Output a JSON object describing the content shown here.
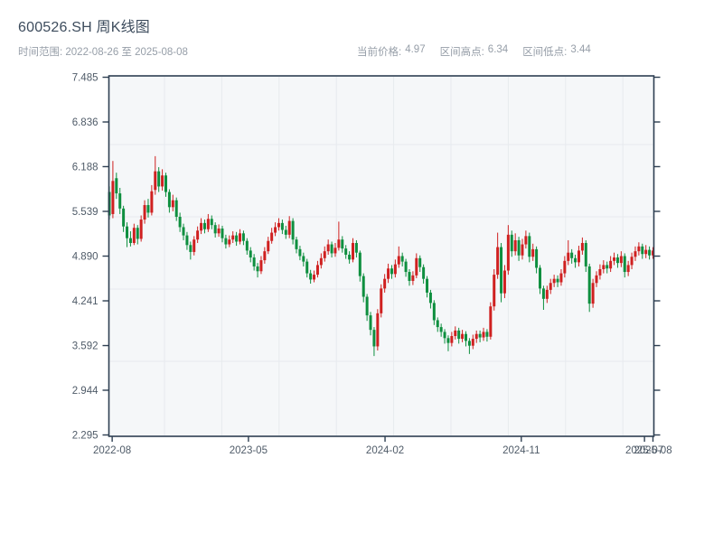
{
  "header": {
    "title": "600526.SH 周K线图",
    "time_range": "时间范围: 2022-08-26 至 2025-08-08",
    "stats": [
      {
        "label": "当前价格:",
        "value": "4.97"
      },
      {
        "label": "区间高点:",
        "value": "6.34"
      },
      {
        "label": "区间低点:",
        "value": "3.44"
      }
    ]
  },
  "chart_data": {
    "type": "candlestick",
    "symbol": "600526.SH",
    "interval": "weekly",
    "title": "600526.SH 周K线图",
    "ylim": [
      2.295,
      7.485
    ],
    "current_price": 4.97,
    "range_high": 6.34,
    "range_low": 3.44,
    "up_color": "#cf2020",
    "down_color": "#0e8f3f",
    "plot_bg": "#f5f7f9",
    "grid_color": "#e7eaee",
    "frame_color": "#2e3f52",
    "tick_label_color": "#4f5b68",
    "y_tick_labels": [
      "7.485",
      "6.836",
      "6.188",
      "5.539",
      "4.890",
      "4.241",
      "3.592",
      "2.944",
      "2.295"
    ],
    "x_ticks": [
      {
        "label": "2022-08",
        "week": 0.8
      },
      {
        "label": "2023-05",
        "week": 39.4
      },
      {
        "label": "2024-02",
        "week": 78.1
      },
      {
        "label": "2024-11",
        "week": 116.7
      },
      {
        "label": "2025-07",
        "week": 151.6
      },
      {
        "label": "2025-08",
        "week": 154
      }
    ],
    "candles": [
      [
        "2022-08-26",
        5.82,
        5.9,
        5.42,
        5.48
      ],
      [
        "2022-09-02",
        5.5,
        6.27,
        5.44,
        5.98
      ],
      [
        "2022-09-09",
        6.02,
        6.1,
        5.72,
        5.8
      ],
      [
        "2022-09-16",
        5.8,
        5.88,
        5.5,
        5.58
      ],
      [
        "2022-09-23",
        5.58,
        5.62,
        5.24,
        5.32
      ],
      [
        "2022-09-30",
        5.32,
        5.38,
        5.02,
        5.15
      ],
      [
        "2022-10-07",
        5.15,
        5.25,
        5.03,
        5.08
      ],
      [
        "2022-10-14",
        5.08,
        5.36,
        5.05,
        5.3
      ],
      [
        "2022-10-21",
        5.3,
        5.34,
        5.06,
        5.14
      ],
      [
        "2022-10-28",
        5.14,
        5.48,
        5.1,
        5.42
      ],
      [
        "2022-11-04",
        5.42,
        5.7,
        5.36,
        5.63
      ],
      [
        "2022-11-11",
        5.63,
        5.72,
        5.45,
        5.52
      ],
      [
        "2022-11-18",
        5.52,
        5.92,
        5.48,
        5.83
      ],
      [
        "2022-11-25",
        5.85,
        6.34,
        5.78,
        6.12
      ],
      [
        "2022-12-02",
        6.12,
        6.18,
        5.82,
        5.9
      ],
      [
        "2022-12-09",
        5.9,
        6.15,
        5.84,
        6.06
      ],
      [
        "2022-12-16",
        6.06,
        6.1,
        5.75,
        5.82
      ],
      [
        "2022-12-23",
        5.82,
        5.86,
        5.52,
        5.6
      ],
      [
        "2022-12-30",
        5.6,
        5.78,
        5.54,
        5.7
      ],
      [
        "2023-01-06",
        5.7,
        5.74,
        5.4,
        5.46
      ],
      [
        "2023-01-13",
        5.46,
        5.52,
        5.24,
        5.31
      ],
      [
        "2023-01-20",
        5.31,
        5.36,
        5.12,
        5.19
      ],
      [
        "2023-01-27",
        5.19,
        5.24,
        4.98,
        5.05
      ],
      [
        "2023-02-03",
        5.05,
        5.1,
        4.84,
        4.95
      ],
      [
        "2023-02-10",
        4.95,
        5.18,
        4.9,
        5.13
      ],
      [
        "2023-02-17",
        5.13,
        5.32,
        5.08,
        5.26
      ],
      [
        "2023-02-24",
        5.26,
        5.44,
        5.21,
        5.37
      ],
      [
        "2023-03-03",
        5.37,
        5.42,
        5.22,
        5.28
      ],
      [
        "2023-03-10",
        5.28,
        5.5,
        5.24,
        5.43
      ],
      [
        "2023-03-17",
        5.43,
        5.48,
        5.28,
        5.34
      ],
      [
        "2023-03-24",
        5.34,
        5.38,
        5.16,
        5.22
      ],
      [
        "2023-03-31",
        5.22,
        5.35,
        5.17,
        5.29
      ],
      [
        "2023-04-07",
        5.29,
        5.33,
        5.09,
        5.15
      ],
      [
        "2023-04-14",
        5.15,
        5.2,
        5.0,
        5.06
      ],
      [
        "2023-04-21",
        5.06,
        5.19,
        5.02,
        5.13
      ],
      [
        "2023-04-28",
        5.13,
        5.25,
        5.08,
        5.19
      ],
      [
        "2023-05-05",
        5.19,
        5.24,
        5.04,
        5.1
      ],
      [
        "2023-05-12",
        5.1,
        5.28,
        5.06,
        5.22
      ],
      [
        "2023-05-19",
        5.22,
        5.26,
        5.05,
        5.11
      ],
      [
        "2023-05-26",
        5.11,
        5.15,
        4.91,
        4.97
      ],
      [
        "2023-06-02",
        4.97,
        5.02,
        4.8,
        4.87
      ],
      [
        "2023-06-09",
        4.87,
        4.92,
        4.68,
        4.74
      ],
      [
        "2023-06-16",
        4.74,
        4.79,
        4.58,
        4.67
      ],
      [
        "2023-06-23",
        4.67,
        4.89,
        4.63,
        4.83
      ],
      [
        "2023-06-30",
        4.83,
        5.02,
        4.78,
        4.96
      ],
      [
        "2023-07-07",
        4.96,
        5.17,
        4.92,
        5.11
      ],
      [
        "2023-07-14",
        5.11,
        5.3,
        5.07,
        5.23
      ],
      [
        "2023-07-21",
        5.23,
        5.38,
        5.18,
        5.31
      ],
      [
        "2023-07-28",
        5.31,
        5.44,
        5.26,
        5.37
      ],
      [
        "2023-08-04",
        5.37,
        5.42,
        5.21,
        5.27
      ],
      [
        "2023-08-11",
        5.27,
        5.33,
        5.14,
        5.2
      ],
      [
        "2023-08-18",
        5.2,
        5.47,
        5.15,
        5.4
      ],
      [
        "2023-08-25",
        5.4,
        5.44,
        5.06,
        5.13
      ],
      [
        "2023-09-01",
        5.13,
        5.17,
        4.93,
        4.99
      ],
      [
        "2023-09-08",
        4.99,
        5.04,
        4.83,
        4.89
      ],
      [
        "2023-09-15",
        4.89,
        4.94,
        4.74,
        4.81
      ],
      [
        "2023-09-22",
        4.81,
        4.85,
        4.58,
        4.64
      ],
      [
        "2023-09-29",
        4.64,
        4.69,
        4.49,
        4.55
      ],
      [
        "2023-10-06",
        4.55,
        4.68,
        4.51,
        4.62
      ],
      [
        "2023-10-13",
        4.62,
        4.82,
        4.58,
        4.76
      ],
      [
        "2023-10-20",
        4.76,
        4.93,
        4.71,
        4.86
      ],
      [
        "2023-10-27",
        4.86,
        5.03,
        4.81,
        4.96
      ],
      [
        "2023-11-03",
        4.96,
        5.13,
        4.91,
        5.06
      ],
      [
        "2023-11-10",
        5.06,
        5.1,
        4.87,
        4.93
      ],
      [
        "2023-11-17",
        4.93,
        5.08,
        4.88,
        5.01
      ],
      [
        "2023-11-24",
        5.01,
        5.39,
        4.97,
        5.13
      ],
      [
        "2023-12-01",
        5.13,
        5.18,
        4.94,
        5.0
      ],
      [
        "2023-12-08",
        5.0,
        5.05,
        4.85,
        4.91
      ],
      [
        "2023-12-15",
        4.91,
        4.96,
        4.78,
        4.84
      ],
      [
        "2023-12-22",
        4.84,
        5.15,
        4.8,
        5.08
      ],
      [
        "2023-12-29",
        5.08,
        5.12,
        4.87,
        4.94
      ],
      [
        "2024-01-05",
        4.94,
        4.97,
        4.52,
        4.6
      ],
      [
        "2024-01-12",
        4.6,
        4.64,
        4.22,
        4.3
      ],
      [
        "2024-01-19",
        4.3,
        4.34,
        3.95,
        4.03
      ],
      [
        "2024-01-26",
        4.03,
        4.08,
        3.74,
        3.82
      ],
      [
        "2024-02-02",
        3.82,
        3.86,
        3.44,
        3.58
      ],
      [
        "2024-02-09",
        3.58,
        4.12,
        3.52,
        4.06
      ],
      [
        "2024-02-16",
        4.06,
        4.48,
        4.0,
        4.42
      ],
      [
        "2024-02-23",
        4.42,
        4.63,
        4.36,
        4.56
      ],
      [
        "2024-03-01",
        4.56,
        4.78,
        4.5,
        4.71
      ],
      [
        "2024-03-08",
        4.71,
        4.76,
        4.56,
        4.63
      ],
      [
        "2024-03-15",
        4.63,
        4.84,
        4.58,
        4.77
      ],
      [
        "2024-03-22",
        4.77,
        5.03,
        4.72,
        4.89
      ],
      [
        "2024-03-29",
        4.89,
        4.94,
        4.74,
        4.81
      ],
      [
        "2024-04-05",
        4.81,
        4.85,
        4.59,
        4.66
      ],
      [
        "2024-04-12",
        4.66,
        4.7,
        4.46,
        4.53
      ],
      [
        "2024-04-19",
        4.53,
        4.67,
        4.47,
        4.61
      ],
      [
        "2024-04-26",
        4.61,
        4.93,
        4.57,
        4.86
      ],
      [
        "2024-05-03",
        4.86,
        4.9,
        4.66,
        4.73
      ],
      [
        "2024-05-10",
        4.73,
        4.77,
        4.49,
        4.56
      ],
      [
        "2024-05-17",
        4.56,
        4.6,
        4.29,
        4.36
      ],
      [
        "2024-05-24",
        4.36,
        4.4,
        4.13,
        4.21
      ],
      [
        "2024-05-31",
        4.21,
        4.25,
        3.89,
        3.96
      ],
      [
        "2024-06-07",
        3.96,
        4.0,
        3.79,
        3.86
      ],
      [
        "2024-06-14",
        3.86,
        3.91,
        3.72,
        3.79
      ],
      [
        "2024-06-21",
        3.79,
        3.83,
        3.62,
        3.7
      ],
      [
        "2024-06-28",
        3.7,
        3.74,
        3.51,
        3.63
      ],
      [
        "2024-07-05",
        3.63,
        3.79,
        3.58,
        3.73
      ],
      [
        "2024-07-12",
        3.73,
        3.87,
        3.68,
        3.81
      ],
      [
        "2024-07-19",
        3.81,
        3.85,
        3.62,
        3.69
      ],
      [
        "2024-07-26",
        3.69,
        3.82,
        3.64,
        3.76
      ],
      [
        "2024-08-02",
        3.76,
        3.8,
        3.58,
        3.66
      ],
      [
        "2024-08-09",
        3.66,
        3.7,
        3.47,
        3.59
      ],
      [
        "2024-08-16",
        3.59,
        3.75,
        3.54,
        3.69
      ],
      [
        "2024-08-23",
        3.69,
        3.81,
        3.63,
        3.76
      ],
      [
        "2024-08-30",
        3.76,
        3.81,
        3.64,
        3.71
      ],
      [
        "2024-09-06",
        3.71,
        3.85,
        3.66,
        3.79
      ],
      [
        "2024-09-13",
        3.79,
        3.83,
        3.65,
        3.72
      ],
      [
        "2024-09-20",
        3.72,
        4.22,
        3.68,
        4.16
      ],
      [
        "2024-09-27",
        4.16,
        4.7,
        4.1,
        4.62
      ],
      [
        "2024-10-04",
        4.62,
        5.23,
        4.56,
        5.02
      ],
      [
        "2024-10-11",
        5.02,
        5.08,
        4.22,
        4.35
      ],
      [
        "2024-10-18",
        4.35,
        4.76,
        4.28,
        4.68
      ],
      [
        "2024-10-25",
        4.68,
        5.34,
        4.62,
        5.2
      ],
      [
        "2024-11-01",
        5.2,
        5.26,
        4.88,
        4.96
      ],
      [
        "2024-11-08",
        4.96,
        5.22,
        4.9,
        5.12
      ],
      [
        "2024-11-15",
        5.12,
        5.17,
        4.82,
        4.9
      ],
      [
        "2024-11-22",
        4.9,
        5.14,
        4.84,
        5.06
      ],
      [
        "2024-11-29",
        5.06,
        5.26,
        5.0,
        5.18
      ],
      [
        "2024-12-06",
        5.18,
        5.23,
        4.8,
        4.88
      ],
      [
        "2024-12-13",
        4.88,
        5.07,
        4.82,
        4.99
      ],
      [
        "2024-12-20",
        4.99,
        5.03,
        4.64,
        4.72
      ],
      [
        "2024-12-27",
        4.72,
        4.76,
        4.34,
        4.42
      ],
      [
        "2025-01-03",
        4.42,
        4.46,
        4.11,
        4.27
      ],
      [
        "2025-01-10",
        4.27,
        4.46,
        4.21,
        4.4
      ],
      [
        "2025-01-17",
        4.4,
        4.56,
        4.34,
        4.5
      ],
      [
        "2025-01-24",
        4.5,
        4.62,
        4.44,
        4.56
      ],
      [
        "2025-01-31",
        4.56,
        4.61,
        4.44,
        4.51
      ],
      [
        "2025-02-07",
        4.51,
        4.7,
        4.46,
        4.64
      ],
      [
        "2025-02-14",
        4.64,
        4.89,
        4.58,
        4.82
      ],
      [
        "2025-02-21",
        4.82,
        5.12,
        4.76,
        4.94
      ],
      [
        "2025-02-28",
        4.94,
        4.99,
        4.78,
        4.86
      ],
      [
        "2025-03-07",
        4.86,
        4.91,
        4.72,
        4.8
      ],
      [
        "2025-03-14",
        4.8,
        5.04,
        4.74,
        4.97
      ],
      [
        "2025-03-21",
        4.97,
        5.16,
        4.91,
        5.08
      ],
      [
        "2025-03-28",
        5.08,
        5.12,
        4.66,
        4.74
      ],
      [
        "2025-04-04",
        4.74,
        4.78,
        4.08,
        4.2
      ],
      [
        "2025-04-11",
        4.2,
        4.56,
        4.14,
        4.5
      ],
      [
        "2025-04-18",
        4.5,
        4.67,
        4.44,
        4.61
      ],
      [
        "2025-04-25",
        4.61,
        4.77,
        4.55,
        4.7
      ],
      [
        "2025-05-02",
        4.7,
        4.83,
        4.64,
        4.76
      ],
      [
        "2025-05-09",
        4.76,
        4.81,
        4.64,
        4.71
      ],
      [
        "2025-05-16",
        4.71,
        4.89,
        4.66,
        4.82
      ],
      [
        "2025-05-23",
        4.82,
        4.94,
        4.76,
        4.87
      ],
      [
        "2025-05-30",
        4.87,
        4.92,
        4.72,
        4.79
      ],
      [
        "2025-06-06",
        4.79,
        4.96,
        4.73,
        4.89
      ],
      [
        "2025-06-13",
        4.89,
        4.93,
        4.58,
        4.66
      ],
      [
        "2025-06-20",
        4.66,
        4.82,
        4.6,
        4.76
      ],
      [
        "2025-06-27",
        4.76,
        4.94,
        4.7,
        4.88
      ],
      [
        "2025-07-04",
        4.88,
        5.03,
        4.82,
        4.96
      ],
      [
        "2025-07-11",
        4.96,
        5.09,
        4.9,
        5.03
      ],
      [
        "2025-07-18",
        5.03,
        5.07,
        4.85,
        4.92
      ],
      [
        "2025-07-25",
        4.92,
        5.05,
        4.86,
        4.98
      ],
      [
        "2025-08-01",
        4.98,
        5.03,
        4.84,
        4.9
      ],
      [
        "2025-08-08",
        4.9,
        5.02,
        4.85,
        4.97
      ]
    ]
  }
}
